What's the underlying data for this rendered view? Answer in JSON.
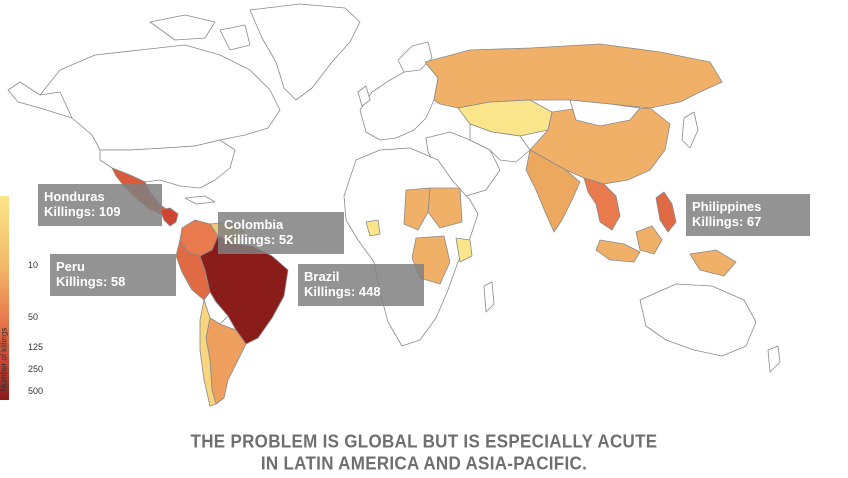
{
  "legend": {
    "title": "Number of killings",
    "ticks": [
      "10",
      "50",
      "125",
      "250",
      "500"
    ]
  },
  "callouts": [
    {
      "country": "Honduras",
      "killings": "Killings: 109"
    },
    {
      "country": "Colombia",
      "killings": "Killings: 52"
    },
    {
      "country": "Peru",
      "killings": "Killings: 58"
    },
    {
      "country": "Brazil",
      "killings": "Killings: 448"
    },
    {
      "country": "Philippines",
      "killings": "Killings: 67"
    }
  ],
  "caption": {
    "line1": "THE PROBLEM IS GLOBAL BUT IS ESPECIALLY ACUTE",
    "line2": "IN LATIN AMERICA AND ASIA-PACIFIC."
  },
  "colors": {
    "scale_low": "#fbe58a",
    "scale_mid": "#f0b068",
    "scale_high": "#d9502f",
    "scale_max": "#8a1c1a",
    "no_data": "#ffffff",
    "callout_bg": "#808080",
    "caption_text": "#6f6f6f"
  }
}
